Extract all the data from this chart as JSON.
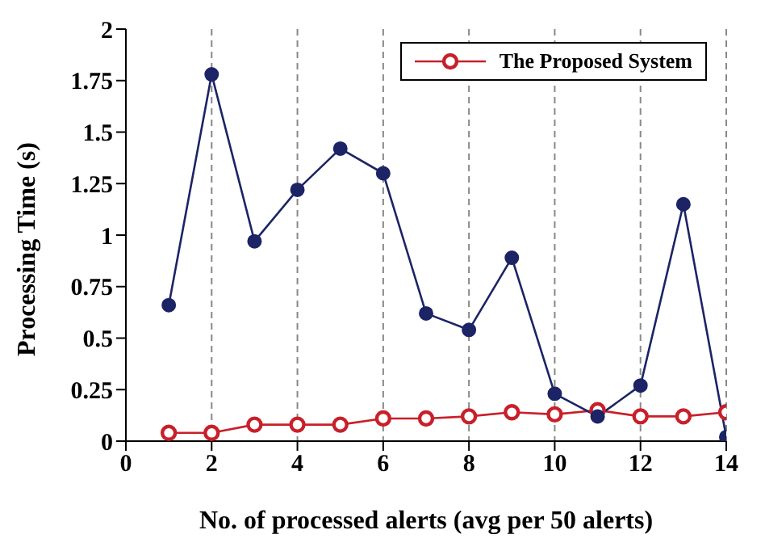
{
  "chart_data": {
    "type": "line",
    "xlabel": "No. of processed alerts (avg per 50 alerts)",
    "ylabel": "Processing Time (s)",
    "x": [
      1,
      2,
      3,
      4,
      5,
      6,
      7,
      8,
      9,
      10,
      11,
      12,
      13,
      14
    ],
    "series": [
      {
        "color": "#1c2466",
        "values": [
          0.66,
          1.78,
          0.97,
          1.22,
          1.42,
          1.3,
          0.62,
          0.54,
          0.89,
          0.23,
          0.12,
          0.27,
          1.15,
          0.02
        ]
      },
      {
        "name": "The Proposed System",
        "color": "#c8202a",
        "values": [
          0.04,
          0.04,
          0.08,
          0.08,
          0.08,
          0.11,
          0.11,
          0.12,
          0.14,
          0.13,
          0.15,
          0.12,
          0.12,
          0.14
        ]
      }
    ],
    "xlim": [
      0,
      14
    ],
    "xticks": [
      0,
      2,
      4,
      6,
      8,
      10,
      12,
      14
    ],
    "ylim": [
      0,
      2
    ],
    "yticks": [
      0,
      0.25,
      0.5,
      0.75,
      1,
      1.25,
      1.5,
      1.75,
      2
    ],
    "grid": "x",
    "legend": "top right",
    "marker": "circle",
    "line_style": "solid"
  }
}
